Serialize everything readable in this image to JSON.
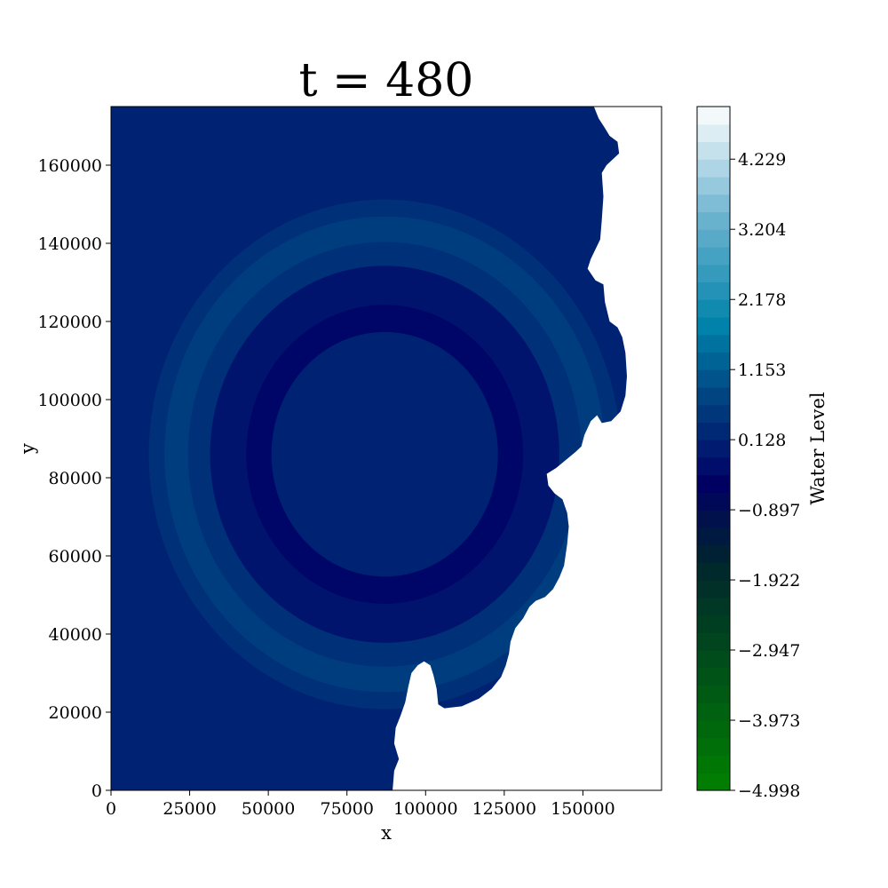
{
  "chart_data": {
    "type": "heatmap",
    "title": "t = 480",
    "xlabel": "x",
    "ylabel": "y",
    "xlim": [
      0,
      175000
    ],
    "ylim": [
      0,
      175000
    ],
    "xticks": [
      0,
      25000,
      50000,
      75000,
      100000,
      125000,
      150000
    ],
    "yticks": [
      0,
      20000,
      40000,
      60000,
      80000,
      100000,
      120000,
      140000,
      160000
    ],
    "xtick_labels": [
      "0",
      "25000",
      "50000",
      "75000",
      "100000",
      "125000",
      "150000"
    ],
    "ytick_labels": [
      "0",
      "20000",
      "40000",
      "60000",
      "80000",
      "100000",
      "120000",
      "140000",
      "160000"
    ],
    "grid": false,
    "colorbar": {
      "label": "Water Level",
      "range": [
        -4.998,
        4.998
      ],
      "ticks": [
        -4.998,
        -3.973,
        -2.947,
        -1.922,
        -0.897,
        0.128,
        1.153,
        2.178,
        3.204,
        4.229
      ],
      "tick_labels": [
        "−4.998",
        "−3.973",
        "−2.947",
        "−1.922",
        "−0.897",
        "0.128",
        "1.153",
        "2.178",
        "3.204",
        "4.229"
      ],
      "levels": 39,
      "colormap": "ocean",
      "color_low": "#008000",
      "color_mid": "#000066",
      "color_high": "#ffffff"
    },
    "field": {
      "background_level": 0.128,
      "land_color": "#ffffff",
      "source_center": [
        87000,
        86000
      ],
      "rings": [
        {
          "level": 0.385,
          "radius": 75000
        },
        {
          "level": 0.641,
          "radius": 70000
        },
        {
          "level": 0.385,
          "radius": 62500
        },
        {
          "level": -0.128,
          "radius": 55500
        },
        {
          "level": -0.385,
          "radius": 44000
        },
        {
          "level": 0.128,
          "radius": 36000
        }
      ]
    }
  }
}
